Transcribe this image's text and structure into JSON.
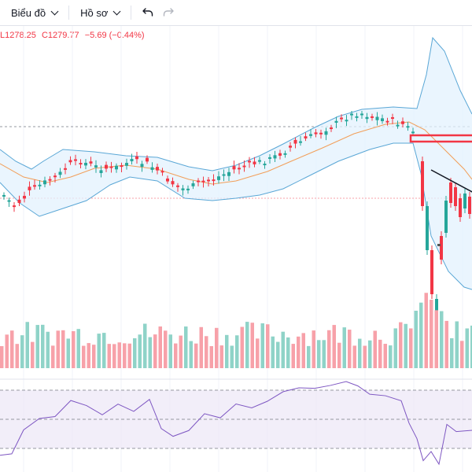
{
  "toolbar": {
    "chart_menu_label": "Biểu đồ",
    "profile_menu_label": "Hồ sơ",
    "undo_icon": "undo-icon",
    "redo_icon": "redo-icon"
  },
  "legend": {
    "low_text": "L1278.25",
    "close_text": "C1279.77",
    "change_text": "−5.69 (−0.44%)"
  },
  "colors": {
    "up": "#26a69a",
    "down": "#f23645",
    "up_volume": "#8fd3c8",
    "down_volume": "#f7a1a9",
    "bollinger_line": "#5aa7d6",
    "bollinger_fill": "#e3f2fd",
    "moving_average": "#f29e58",
    "rsi_line": "#7e57c2",
    "rsi_band": "#ede7f6",
    "trendline": "#131722",
    "marker": "#f23645"
  }
}
